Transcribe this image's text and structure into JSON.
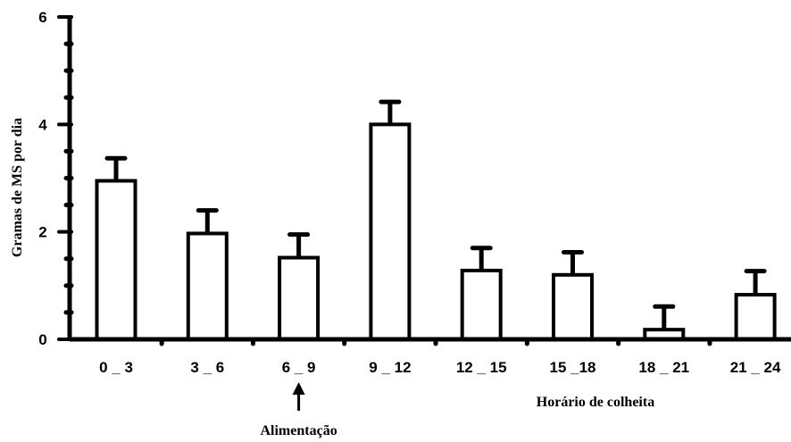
{
  "chart_data": {
    "type": "bar",
    "title": "",
    "xlabel": "Horário de colheita",
    "ylabel": "Gramas de MS por dia",
    "categories": [
      "0 _ 3",
      "3 _ 6",
      "6 _ 9",
      "9 _ 12",
      "12 _ 15",
      "15 _18",
      "18 _ 21",
      "21 _ 24"
    ],
    "values": [
      2.95,
      1.97,
      1.52,
      4.0,
      1.28,
      1.2,
      0.18,
      0.83
    ],
    "error_upper": [
      0.42,
      0.43,
      0.43,
      0.42,
      0.42,
      0.42,
      0.43,
      0.44
    ],
    "ylim": [
      0,
      6
    ],
    "yticks": [
      0,
      2,
      4,
      6
    ],
    "grid": false,
    "annotation": {
      "text": "Alimentação",
      "category": "6 _ 9",
      "icon": "up-arrow-icon"
    },
    "colors": {
      "bar_fill": "#ffffff",
      "stroke": "#000000"
    }
  }
}
